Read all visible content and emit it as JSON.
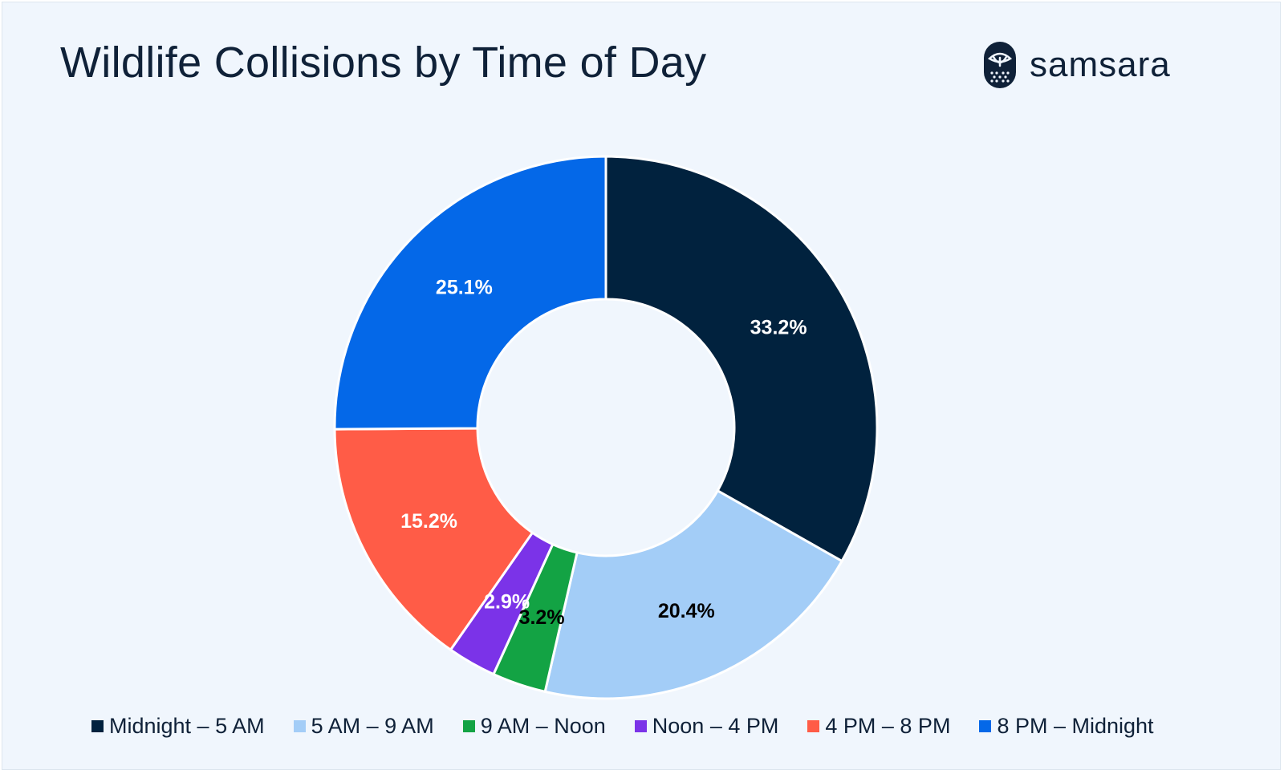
{
  "header": {
    "title": "Wildlife Collisions by Time of Day",
    "brand_name": "samsara"
  },
  "chart_data": {
    "type": "pie",
    "title": "Wildlife Collisions by Time of Day",
    "donut": true,
    "legend_position": "bottom",
    "categories": [
      "Midnight – 5 AM",
      "5 AM – 9 AM",
      "9 AM – Noon",
      "Noon – 4 PM",
      "4 PM – 8 PM",
      "8 PM – Midnight"
    ],
    "values": [
      33.2,
      20.4,
      3.2,
      2.9,
      15.2,
      25.1
    ],
    "labels": [
      "33.2%",
      "20.4%",
      "3.2%",
      "2.9%",
      "15.2%",
      "25.1%"
    ],
    "colors": [
      "#01223e",
      "#a3cdf7",
      "#13a344",
      "#7b33e8",
      "#ff5c47",
      "#0468e8"
    ],
    "label_colors": [
      "#ffffff",
      "#000000",
      "#000000",
      "#ffffff",
      "#ffffff",
      "#ffffff"
    ]
  }
}
